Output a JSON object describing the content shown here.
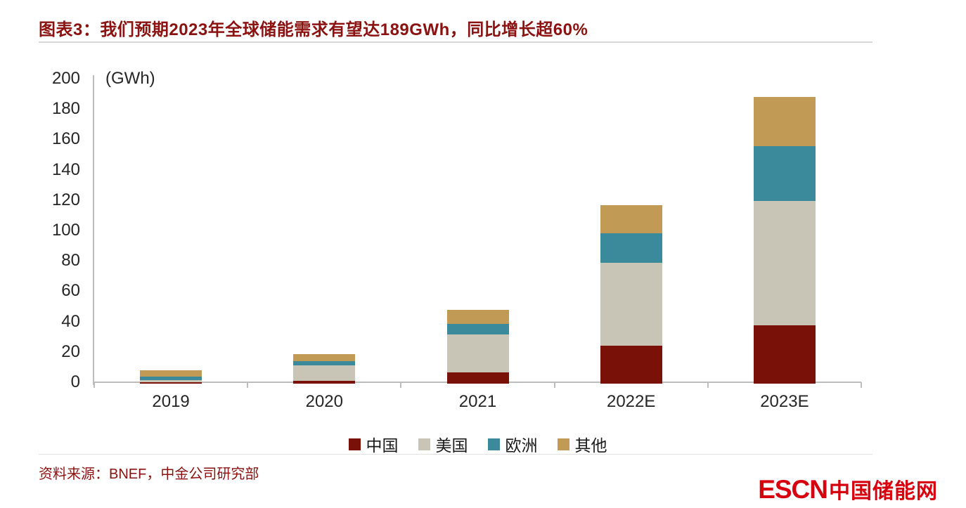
{
  "title": "图表3：我们预期2023年全球储能需求有望达189GWh，同比增长超60%",
  "source_note": "资料来源：BNEF，中金公司研究部",
  "logo": {
    "escn": "ESCN",
    "site_name": "中国储能网",
    "color": "#D7000F"
  },
  "colors": {
    "title_red": "#8B1210",
    "axis_gray": "#BDBDBD",
    "tick_text": "#262626"
  },
  "chart_data": {
    "type": "bar",
    "stacked": true,
    "title": "",
    "unit_label": "(GWh)",
    "categories": [
      "2019",
      "2020",
      "2021",
      "2022E",
      "2023E"
    ],
    "series": [
      {
        "name": "中国",
        "color": "#7A1108",
        "values": [
          1,
          2,
          7.5,
          25,
          38.5
        ]
      },
      {
        "name": "美国",
        "color": "#C8C4B6",
        "values": [
          1.5,
          10,
          25,
          54.5,
          82
        ]
      },
      {
        "name": "欧洲",
        "color": "#3A8A9C",
        "values": [
          2,
          3,
          7,
          19.5,
          36
        ]
      },
      {
        "name": "其他",
        "color": "#C19A55",
        "values": [
          4.3,
          4.5,
          9,
          18.5,
          32.5
        ]
      }
    ],
    "totals": [
      8.8,
      19.5,
      48.5,
      117.5,
      189
    ],
    "ylim": [
      0,
      200
    ],
    "ytick_step": 20,
    "grid": false,
    "legend_position": "bottom"
  }
}
